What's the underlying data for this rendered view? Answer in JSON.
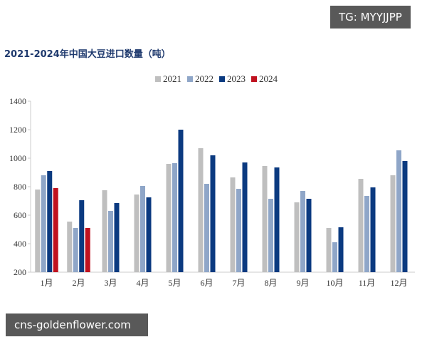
{
  "watermarks": {
    "top_right": "TG: MYYJJPP",
    "bottom_left": "cns-goldenflower.com"
  },
  "chart_data": {
    "type": "bar",
    "title": "2021-2024年中国大豆进口数量（吨）",
    "xlabel": "",
    "ylabel": "",
    "ylim": [
      200,
      1400
    ],
    "yticks": [
      200,
      400,
      600,
      800,
      1000,
      1200,
      1400
    ],
    "categories": [
      "1月",
      "2月",
      "3月",
      "4月",
      "5月",
      "6月",
      "7月",
      "8月",
      "9月",
      "10月",
      "11月",
      "12月"
    ],
    "legend_position": "top",
    "grid": false,
    "series": [
      {
        "name": "2021",
        "color": "#bfbfbf",
        "values": [
          780,
          555,
          775,
          745,
          960,
          1070,
          865,
          945,
          690,
          510,
          855,
          880
        ]
      },
      {
        "name": "2022",
        "color": "#8fa6c8",
        "values": [
          880,
          510,
          630,
          805,
          965,
          820,
          785,
          715,
          770,
          410,
          735,
          1055
        ]
      },
      {
        "name": "2023",
        "color": "#0b3a80",
        "values": [
          910,
          705,
          685,
          725,
          1200,
          1020,
          970,
          935,
          715,
          515,
          795,
          980
        ]
      },
      {
        "name": "2024",
        "color": "#c0121f",
        "values": [
          790,
          510,
          null,
          null,
          null,
          null,
          null,
          null,
          null,
          null,
          null,
          null
        ]
      }
    ]
  }
}
